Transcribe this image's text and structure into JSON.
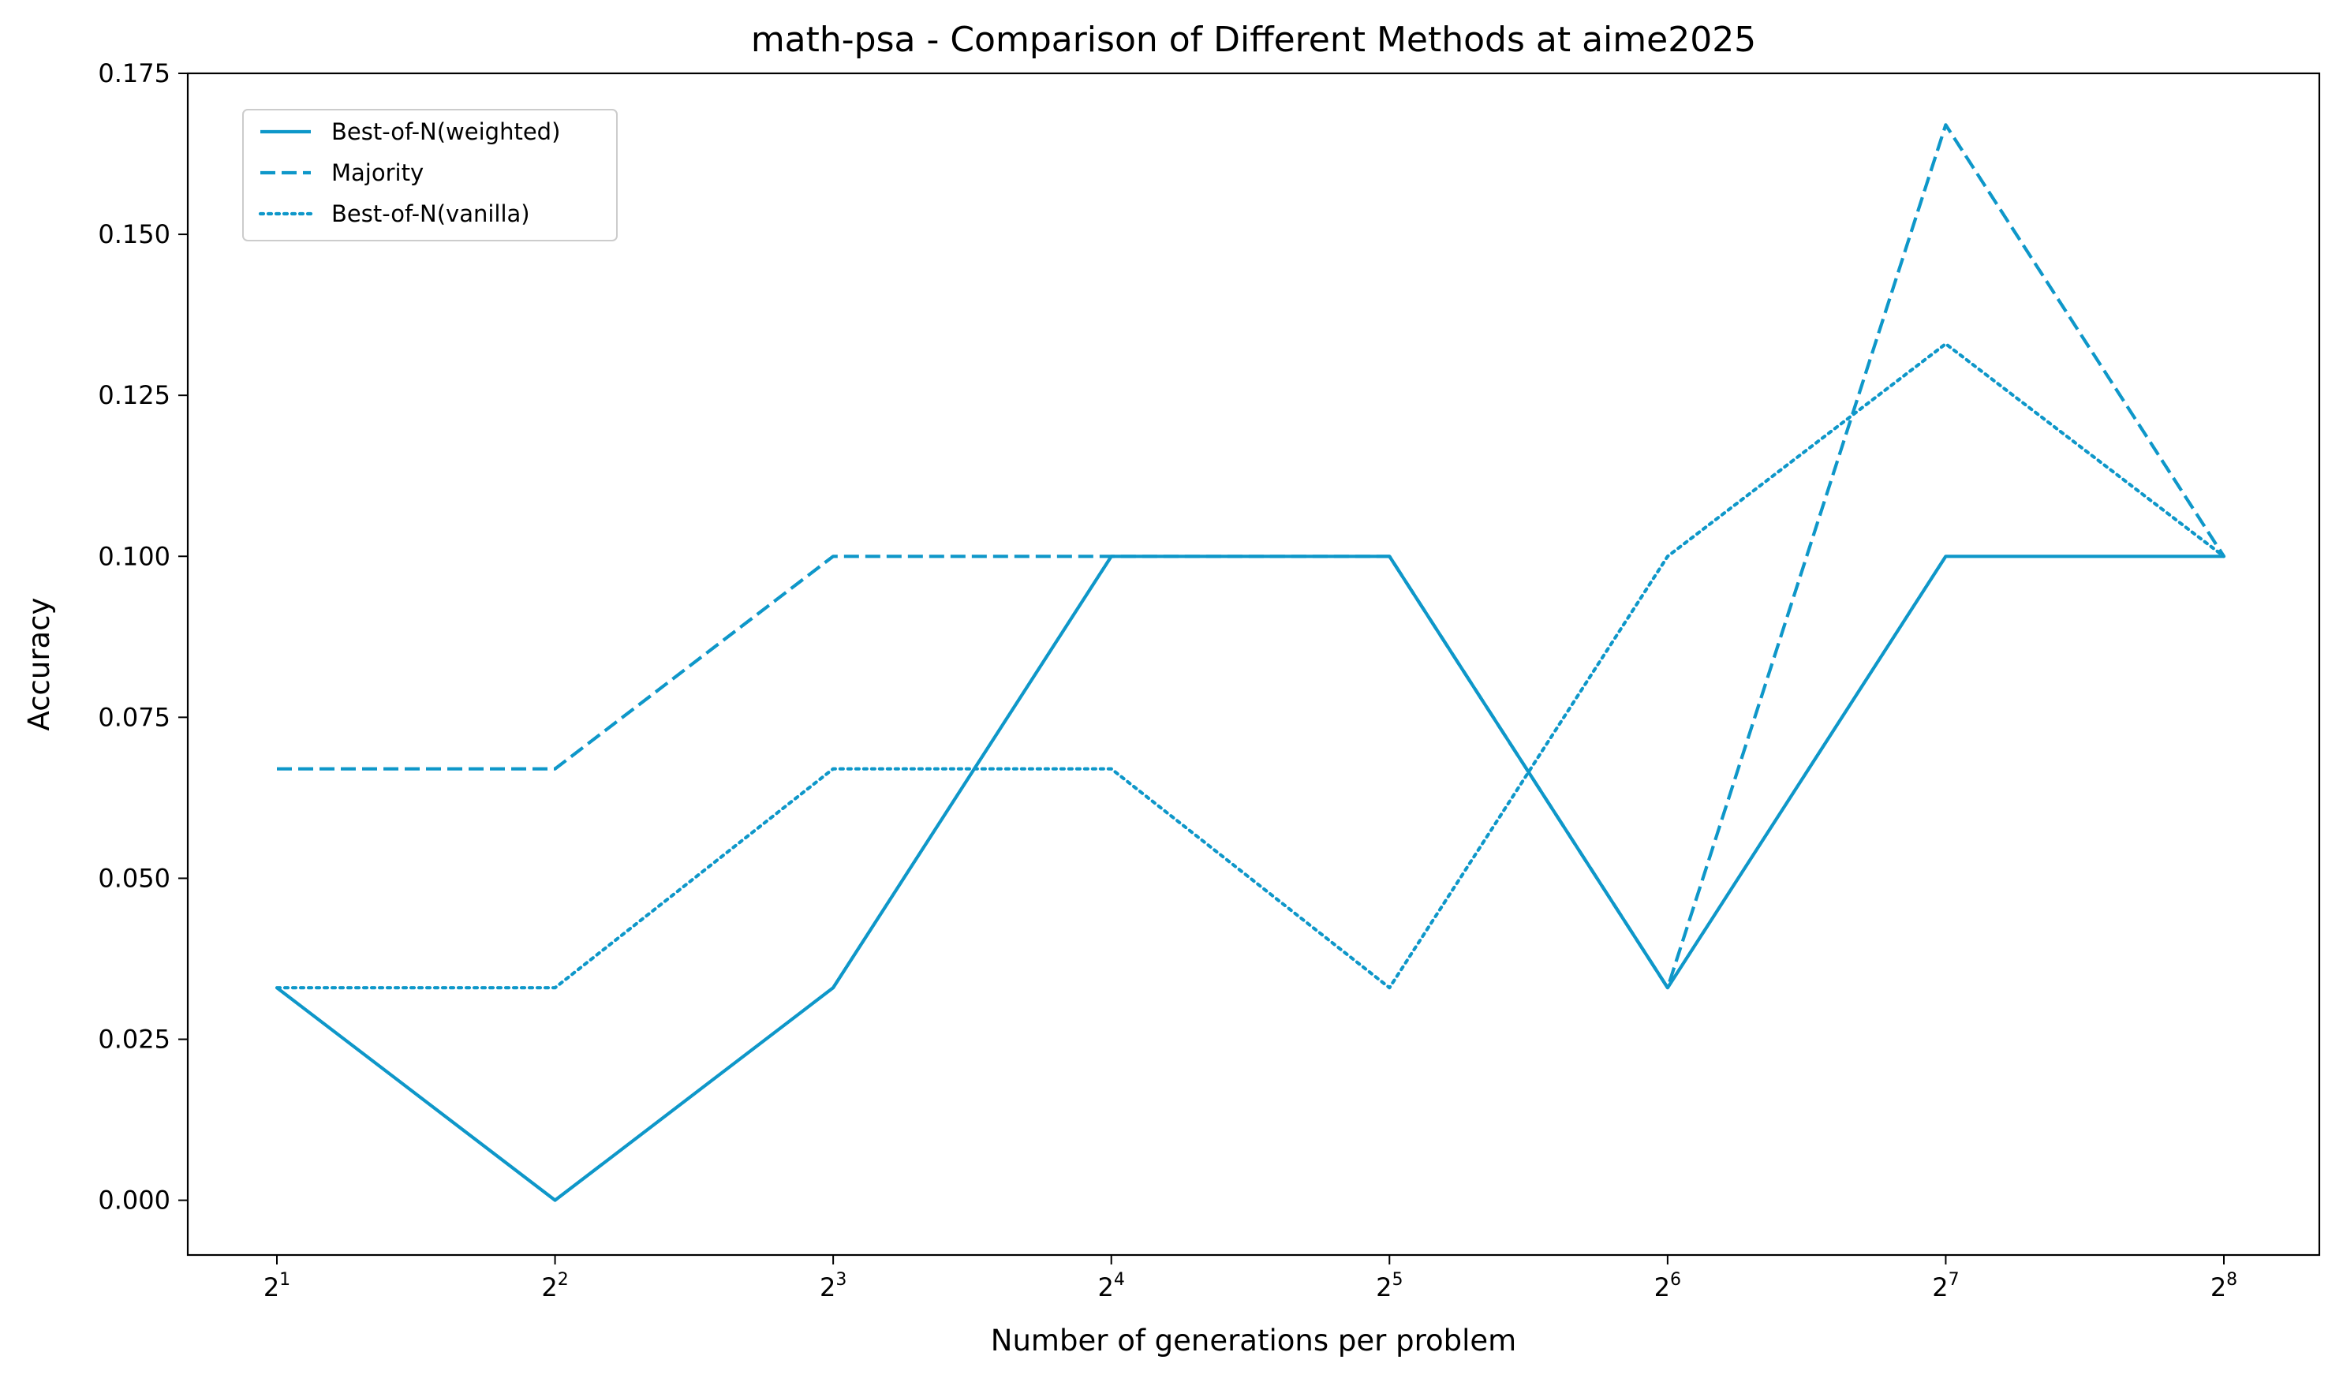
{
  "chart_data": {
    "type": "line",
    "title": "math-psa - Comparison of Different Methods at aime2025",
    "xlabel": "Number of generations per problem",
    "ylabel": "Accuracy",
    "x_base": "2",
    "x_exponents": [
      "1",
      "2",
      "3",
      "4",
      "5",
      "6",
      "7",
      "8"
    ],
    "x": [
      2,
      4,
      8,
      16,
      32,
      64,
      128,
      256
    ],
    "x_scale": "log2",
    "ylim": [
      -0.0085,
      0.175
    ],
    "y_ticks": [
      0.0,
      0.025,
      0.05,
      0.075,
      0.1,
      0.125,
      0.15,
      0.175
    ],
    "y_tick_labels": [
      "0.000",
      "0.025",
      "0.050",
      "0.075",
      "0.100",
      "0.125",
      "0.150",
      "0.175"
    ],
    "grid": false,
    "legend_position": "upper-left",
    "series": [
      {
        "name": "Best-of-N(weighted)",
        "style": "solid",
        "color": "#0e97c9",
        "values": [
          0.033,
          0.0,
          0.033,
          0.1,
          0.1,
          0.033,
          0.1,
          0.1
        ]
      },
      {
        "name": "Majority",
        "style": "dashed",
        "color": "#0e97c9",
        "values": [
          0.067,
          0.067,
          0.1,
          0.1,
          0.1,
          0.033,
          0.167,
          0.1
        ]
      },
      {
        "name": "Best-of-N(vanilla)",
        "style": "dotted",
        "color": "#0e97c9",
        "values": [
          0.033,
          0.033,
          0.067,
          0.067,
          0.033,
          0.1,
          0.133,
          0.1
        ]
      }
    ]
  }
}
